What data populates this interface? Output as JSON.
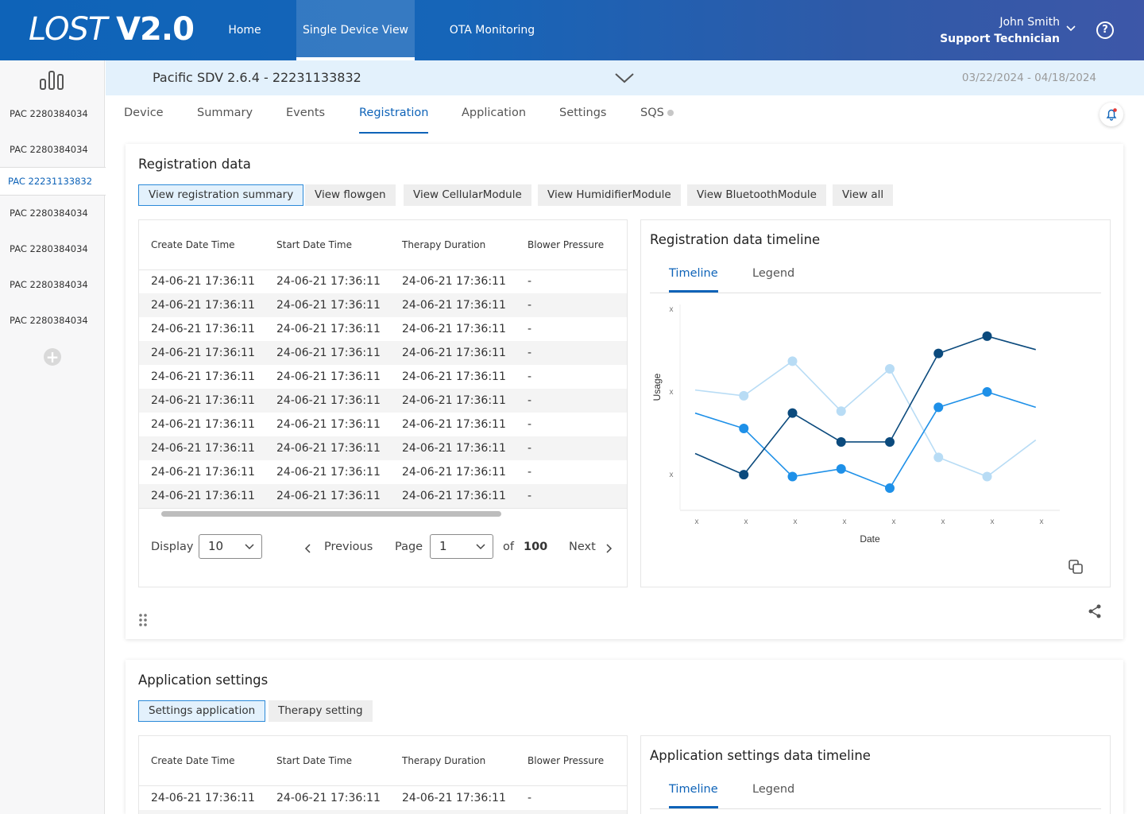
{
  "header": {
    "logo_text": "LOST",
    "logo_version": "V2.0",
    "nav": [
      "Home",
      "Single Device View",
      "OTA Monitoring"
    ],
    "active_nav": "Single Device View",
    "user_name": "John Smith",
    "user_role": "Support Technician",
    "help_label": "?"
  },
  "sidebar": {
    "items": [
      "PAC 2280384034",
      "PAC 2280384034",
      "PAC 22231133832",
      "PAC 2280384034",
      "PAC 2280384034",
      "PAC 2280384034",
      "PAC 2280384034"
    ],
    "active_index": 2,
    "add_label": "+"
  },
  "device": {
    "name": "Pacific SDV 2.6.4 - 22231133832",
    "date_range": "03/22/2024 - 04/18/2024"
  },
  "subtabs": [
    "Device",
    "Summary",
    "Events",
    "Registration",
    "Application",
    "Settings",
    "SQS"
  ],
  "active_subtab": "Registration",
  "registration": {
    "title": "Registration data",
    "buttons": [
      "View registration summary",
      "View flowgen",
      "View CellularModule",
      "View HumidifierModule",
      "View BluetoothModule",
      "View all"
    ],
    "table": {
      "columns": [
        "Create Date Time",
        "Start Date Time",
        "Therapy Duration",
        "Blower Pressure"
      ],
      "rows": [
        [
          "24-06-21 17:36:11",
          "24-06-21 17:36:11",
          "24-06-21 17:36:11",
          "-"
        ],
        [
          "24-06-21 17:36:11",
          "24-06-21 17:36:11",
          "24-06-21 17:36:11",
          "-"
        ],
        [
          "24-06-21 17:36:11",
          "24-06-21 17:36:11",
          "24-06-21 17:36:11",
          "-"
        ],
        [
          "24-06-21 17:36:11",
          "24-06-21 17:36:11",
          "24-06-21 17:36:11",
          "-"
        ],
        [
          "24-06-21 17:36:11",
          "24-06-21 17:36:11",
          "24-06-21 17:36:11",
          "-"
        ],
        [
          "24-06-21 17:36:11",
          "24-06-21 17:36:11",
          "24-06-21 17:36:11",
          "-"
        ],
        [
          "24-06-21 17:36:11",
          "24-06-21 17:36:11",
          "24-06-21 17:36:11",
          "-"
        ],
        [
          "24-06-21 17:36:11",
          "24-06-21 17:36:11",
          "24-06-21 17:36:11",
          "-"
        ],
        [
          "24-06-21 17:36:11",
          "24-06-21 17:36:11",
          "24-06-21 17:36:11",
          "-"
        ],
        [
          "24-06-21 17:36:11",
          "24-06-21 17:36:11",
          "24-06-21 17:36:11",
          "-"
        ]
      ]
    },
    "pagination": {
      "display_label": "Display",
      "display_value": "10",
      "previous": "Previous",
      "page_label": "Page",
      "page_value": "1",
      "of_label": "of",
      "total_pages": "100",
      "next": "Next"
    },
    "timeline": {
      "title": "Registration data timeline",
      "tabs": [
        "Timeline",
        "Legend"
      ],
      "active_tab": "Timeline"
    }
  },
  "app_settings": {
    "title": "Application settings",
    "buttons": [
      "Settings application",
      "Therapy setting"
    ],
    "table": {
      "columns": [
        "Create Date Time",
        "Start Date Time",
        "Therapy Duration",
        "Blower Pressure"
      ],
      "rows": [
        [
          "24-06-21 17:36:11",
          "24-06-21 17:36:11",
          "24-06-21 17:36:11",
          "-"
        ]
      ]
    },
    "timeline": {
      "title": "Application settings data timeline",
      "tabs": [
        "Timeline",
        "Legend"
      ],
      "active_tab": "Timeline"
    }
  },
  "colors": {
    "nav_gradient_start": "#0e63b8",
    "nav_gradient_end": "#3d57a8",
    "accent": "#0e63b8",
    "series_light": "#b8dcf5",
    "series_mid": "#1e90e8",
    "series_dark": "#0b4a7d"
  },
  "chart_data": {
    "type": "line",
    "ylabel": "Usage",
    "xlabel": "Date",
    "x_tick_labels": [
      "x",
      "x",
      "x",
      "x",
      "x",
      "x",
      "x",
      "x"
    ],
    "y_tick_labels": [
      "x",
      "x",
      "x"
    ],
    "x": [
      0,
      1,
      2,
      3,
      4,
      5,
      6,
      7,
      8
    ],
    "ylim": [
      0,
      10
    ],
    "grid": false,
    "series": [
      {
        "color": "#b8dcf5",
        "values": [
          5.8,
          5.5,
          7.3,
          4.7,
          6.9,
          2.3,
          1.3,
          3.2,
          null
        ],
        "points": [
          1,
          2,
          3,
          4,
          5,
          6
        ]
      },
      {
        "color": "#1e90e8",
        "values": [
          4.6,
          3.8,
          1.3,
          1.7,
          0.7,
          4.9,
          5.7,
          4.9,
          null
        ],
        "points": [
          1,
          2,
          3,
          4,
          5,
          6
        ]
      },
      {
        "color": "#0b4a7d",
        "values": [
          2.5,
          1.4,
          4.6,
          3.1,
          3.1,
          7.7,
          8.6,
          7.9,
          null
        ],
        "points": [
          1,
          2,
          3,
          4,
          5,
          6
        ]
      }
    ]
  }
}
